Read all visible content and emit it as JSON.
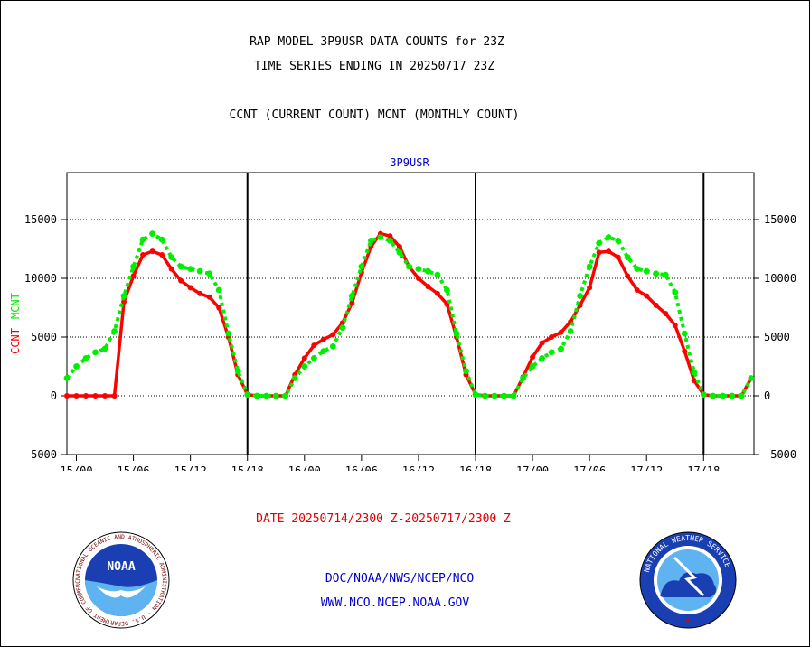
{
  "header": {
    "title_line1": "RAP MODEL 3P9USR DATA COUNTS for 23Z",
    "title_line2": "TIME SERIES ENDING IN 20250717 23Z",
    "subtitle": "CCNT (CURRENT COUNT) MCNT (MONTHLY COUNT)"
  },
  "footer": {
    "date_range": "DATE 20250714/2300 Z-20250717/2300 Z",
    "org": "DOC/NOAA/NWS/NCEP/NCO",
    "url": "WWW.NCO.NCEP.NOAA.GOV"
  },
  "logos": {
    "noaa_text": "NOAA",
    "noaa_ring": "NATIONAL OCEANIC AND ATMOSPHERIC ADMINISTRATION · U.S. DEPARTMENT OF COMMERCE",
    "nws_ring": "NATIONAL WEATHER SERVICE"
  },
  "colors": {
    "ccnt": "#ff0000",
    "mcnt": "#00ee00",
    "label_blue": "#0000cc",
    "date_red": "#e00000"
  },
  "chart_data": {
    "type": "line",
    "title": "3P9USR",
    "ylim": [
      -5000,
      19000
    ],
    "yticks": [
      -5000,
      0,
      5000,
      10000,
      15000
    ],
    "ytick_labels": [
      "-5000",
      "0",
      "5000",
      "10000",
      "15000"
    ],
    "xlim": [
      -1,
      71.3
    ],
    "x_ticks": [
      {
        "x": 0,
        "label": "15/00"
      },
      {
        "x": 6,
        "label": "15/06"
      },
      {
        "x": 12,
        "label": "15/12"
      },
      {
        "x": 18,
        "label": "15/18"
      },
      {
        "x": 24,
        "label": "16/00"
      },
      {
        "x": 30,
        "label": "16/06"
      },
      {
        "x": 36,
        "label": "16/12"
      },
      {
        "x": 42,
        "label": "16/18"
      },
      {
        "x": 48,
        "label": "17/00"
      },
      {
        "x": 54,
        "label": "17/06"
      },
      {
        "x": 60,
        "label": "17/12"
      },
      {
        "x": 66,
        "label": "17/18"
      }
    ],
    "day_dividers": [
      18,
      42,
      66
    ],
    "grid_lines": [
      0,
      5000,
      10000,
      15000
    ],
    "ylabel_left": [
      "CCNT",
      "MCNT"
    ],
    "series": [
      {
        "name": "CCNT",
        "color": "#ff0000",
        "x": [
          -1,
          0,
          1,
          2,
          3,
          4,
          5,
          6,
          7,
          8,
          9,
          10,
          11,
          12,
          13,
          14,
          15,
          16,
          17,
          18,
          19,
          20,
          21,
          22,
          23,
          24,
          25,
          26,
          27,
          28,
          29,
          30,
          31,
          32,
          33,
          34,
          35,
          36,
          37,
          38,
          39,
          40,
          41,
          42,
          43,
          44,
          45,
          46,
          47,
          48,
          49,
          50,
          51,
          52,
          53,
          54,
          55,
          56,
          57,
          58,
          59,
          60,
          61,
          62,
          63,
          64,
          65,
          66,
          67,
          68,
          69,
          70,
          71
        ],
        "values": [
          0,
          0,
          0,
          0,
          0,
          0,
          8000,
          10200,
          12000,
          12300,
          12000,
          10800,
          9800,
          9200,
          8700,
          8400,
          7500,
          5000,
          1800,
          100,
          0,
          0,
          0,
          0,
          1800,
          3200,
          4300,
          4800,
          5200,
          6200,
          7900,
          10500,
          12700,
          13800,
          13600,
          12700,
          11000,
          10000,
          9300,
          8700,
          7800,
          5000,
          1800,
          100,
          0,
          0,
          0,
          0,
          1600,
          3300,
          4500,
          5000,
          5400,
          6300,
          7700,
          9200,
          12200,
          12300,
          11800,
          10200,
          9000,
          8500,
          7700,
          7000,
          6000,
          3800,
          1300,
          100,
          0,
          0,
          0,
          0,
          1500
        ]
      },
      {
        "name": "MCNT",
        "color": "#00ee00",
        "x": [
          -1,
          0,
          1,
          2,
          3,
          4,
          5,
          6,
          7,
          8,
          9,
          10,
          11,
          12,
          13,
          14,
          15,
          16,
          17,
          18,
          19,
          20,
          21,
          22,
          23,
          24,
          25,
          26,
          27,
          28,
          29,
          30,
          31,
          32,
          33,
          34,
          35,
          36,
          37,
          38,
          39,
          40,
          41,
          42,
          43,
          44,
          45,
          46,
          47,
          48,
          49,
          50,
          51,
          52,
          53,
          54,
          55,
          56,
          57,
          58,
          59,
          60,
          61,
          62,
          63,
          64,
          65,
          66,
          67,
          68,
          69,
          70,
          71
        ],
        "values": [
          1500,
          2500,
          3200,
          3700,
          4000,
          5500,
          8500,
          11000,
          13300,
          13800,
          13300,
          11800,
          11000,
          10800,
          10600,
          10400,
          9000,
          5300,
          2100,
          100,
          0,
          0,
          0,
          0,
          1500,
          2500,
          3200,
          3800,
          4200,
          5800,
          8500,
          11000,
          13200,
          13500,
          13200,
          12200,
          11000,
          10800,
          10600,
          10300,
          9000,
          5300,
          2100,
          100,
          0,
          0,
          0,
          0,
          1500,
          2500,
          3200,
          3700,
          4000,
          5500,
          8500,
          11000,
          13000,
          13500,
          13200,
          11800,
          10800,
          10600,
          10400,
          10300,
          8800,
          5300,
          2000,
          100,
          0,
          0,
          0,
          0,
          1500
        ]
      }
    ]
  }
}
